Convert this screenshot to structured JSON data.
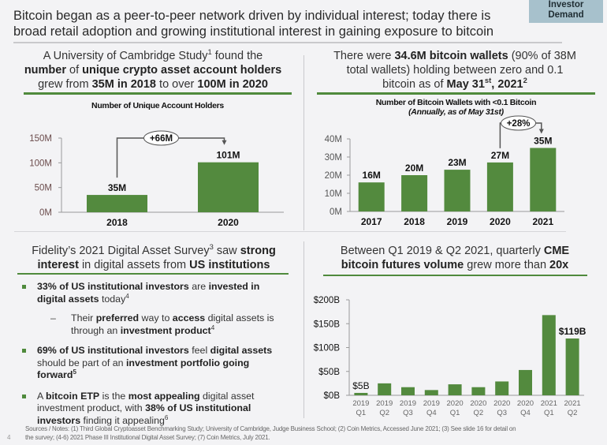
{
  "header": {
    "title_line1": "Bitcoin began as a peer-to-peer network driven by individual interest; today there is",
    "title_line2": "broad retail adoption and growing institutional interest in gaining exposure to bitcoin",
    "badge_line1": "Investor",
    "badge_line2": "Demand"
  },
  "panels": {
    "top_left": {
      "title_parts": [
        {
          "t": "A University of Cambridge Study",
          "b": false
        },
        {
          "t": "1",
          "sup": true
        },
        {
          "t": " found the ",
          "b": false
        },
        {
          "br": true
        },
        {
          "t": "number",
          "b": true
        },
        {
          "t": " of ",
          "b": false
        },
        {
          "t": "unique crypto asset account holders",
          "b": true
        },
        {
          "br": true
        },
        {
          "t": "grew from ",
          "b": false
        },
        {
          "t": "35M in 2018",
          "b": true
        },
        {
          "t": " to over ",
          "b": false
        },
        {
          "t": "100M in 2020",
          "b": true
        }
      ]
    },
    "top_right": {
      "title_parts": [
        {
          "t": "There were ",
          "b": false
        },
        {
          "t": "34.6M bitcoin wallets",
          "b": true
        },
        {
          "t": " (90% of 38M",
          "b": false
        },
        {
          "br": true
        },
        {
          "t": "total wallets) holding between zero and 0.1",
          "b": false
        },
        {
          "br": true
        },
        {
          "t": "bitcoin as of ",
          "b": false
        },
        {
          "t": "May 31",
          "b": true
        },
        {
          "t": "st",
          "sup": true,
          "b": true
        },
        {
          "t": ", 2021",
          "b": true
        },
        {
          "t": "2",
          "sup": true,
          "b": true
        }
      ]
    },
    "bottom_left": {
      "title_parts": [
        {
          "t": "Fidelity’s 2021 Digital Asset Survey",
          "b": false
        },
        {
          "t": "3",
          "sup": true
        },
        {
          "t": " saw ",
          "b": false
        },
        {
          "t": "strong",
          "b": true
        },
        {
          "br": true
        },
        {
          "t": "interest",
          "b": true
        },
        {
          "t": " in digital assets from ",
          "b": false
        },
        {
          "t": "US institutions",
          "b": true
        }
      ],
      "bullets": [
        {
          "level": 1,
          "parts": [
            {
              "t": "33% of US institutional investors",
              "b": true
            },
            {
              "t": " are ",
              "b": false
            },
            {
              "t": "invested in digital assets",
              "b": true
            },
            {
              "t": " today",
              "b": false
            },
            {
              "t": "4",
              "sup": true
            }
          ]
        },
        {
          "level": 2,
          "parts": [
            {
              "t": "Their ",
              "b": false
            },
            {
              "t": "preferred",
              "b": true
            },
            {
              "t": " way to ",
              "b": false
            },
            {
              "t": "access",
              "b": true
            },
            {
              "t": " digital assets is through an ",
              "b": false
            },
            {
              "t": "investment product",
              "b": true
            },
            {
              "t": "4",
              "sup": true
            }
          ]
        },
        {
          "level": 1,
          "parts": [
            {
              "t": "69% of US institutional investors",
              "b": true
            },
            {
              "t": " feel ",
              "b": false
            },
            {
              "t": "digital assets",
              "b": true
            },
            {
              "t": " should be part of an ",
              "b": false
            },
            {
              "t": "investment portfolio going forward",
              "b": true
            },
            {
              "t": "5",
              "sup": true,
              "b": true
            }
          ]
        },
        {
          "level": 1,
          "parts": [
            {
              "t": "A ",
              "b": false
            },
            {
              "t": "bitcoin ETP",
              "b": true
            },
            {
              "t": " is the ",
              "b": false
            },
            {
              "t": "most appealing",
              "b": true
            },
            {
              "t": " digital asset investment product, with ",
              "b": false
            },
            {
              "t": "38% of US institutional investors",
              "b": true
            },
            {
              "t": " finding it appealing",
              "b": false
            },
            {
              "t": "6",
              "sup": true
            }
          ]
        }
      ],
      "dash": "–"
    },
    "bottom_right": {
      "title_parts": [
        {
          "t": "Between Q1 2019 & Q2 2021, quarterly ",
          "b": false
        },
        {
          "t": "CME",
          "b": true
        },
        {
          "br": true
        },
        {
          "t": "bitcoin futures volume",
          "b": true
        },
        {
          "t": " grew more than ",
          "b": false
        },
        {
          "t": "20x",
          "b": true
        }
      ]
    }
  },
  "chart_data": [
    {
      "type": "bar",
      "title": "Number of Unique Account Holders",
      "categories": [
        "2018",
        "2020"
      ],
      "values": [
        35,
        101
      ],
      "data_labels": [
        "35M",
        "101M"
      ],
      "yticks": [
        "0M",
        "50M",
        "100M",
        "150M"
      ],
      "ylim": [
        0,
        150
      ],
      "unit": "M",
      "annotation": {
        "label": "+66M",
        "from": "2018",
        "to": "2020"
      },
      "color": "#538a3e"
    },
    {
      "type": "bar",
      "title": "Number of Bitcoin Wallets with <0.1 Bitcoin",
      "subtitle": "(Annually, as of May 31st)",
      "categories": [
        "2017",
        "2018",
        "2019",
        "2020",
        "2021"
      ],
      "values": [
        16,
        20,
        23,
        27,
        35
      ],
      "data_labels": [
        "16M",
        "20M",
        "23M",
        "27M",
        "35M"
      ],
      "yticks": [
        "0M",
        "10M",
        "20M",
        "30M",
        "40M"
      ],
      "ylim": [
        0,
        40
      ],
      "unit": "M",
      "annotation": {
        "label": "+28%",
        "from": "2020",
        "to": "2021"
      },
      "color": "#538a3e"
    },
    {
      "type": "bar",
      "title": "",
      "categories": [
        [
          "2019",
          "Q1"
        ],
        [
          "2019",
          "Q2"
        ],
        [
          "2019",
          "Q3"
        ],
        [
          "2019",
          "Q4"
        ],
        [
          "2020",
          "Q1"
        ],
        [
          "2020",
          "Q2"
        ],
        [
          "2020",
          "Q3"
        ],
        [
          "2020",
          "Q4"
        ],
        [
          "2021",
          "Q1"
        ],
        [
          "2021",
          "Q2"
        ]
      ],
      "values": [
        5,
        25,
        17,
        11,
        23,
        17,
        29,
        53,
        168,
        119
      ],
      "data_labels": [
        "$5B",
        "",
        "",
        "",
        "",
        "",
        "",
        "",
        "",
        "$119B"
      ],
      "yticks": [
        "$0B",
        "$50B",
        "$100B",
        "$150B",
        "$200B"
      ],
      "ylim": [
        0,
        200
      ],
      "unit": "$B",
      "color": "#538a3e"
    }
  ],
  "footer": {
    "notes_line1": "Sources / Notes: (1) Third Global Cryptoasset Benchmarking Study; University of Cambridge, Judge Business School; (2) Coin Metrics, Accessed June 2021; (3) See slide 16 for detail on",
    "notes_line2": "the survey; (4-6) 2021 Phase III Institutional Digital Asset Survey; (7) Coin Metrics, July 2021.",
    "page_number": "4"
  }
}
